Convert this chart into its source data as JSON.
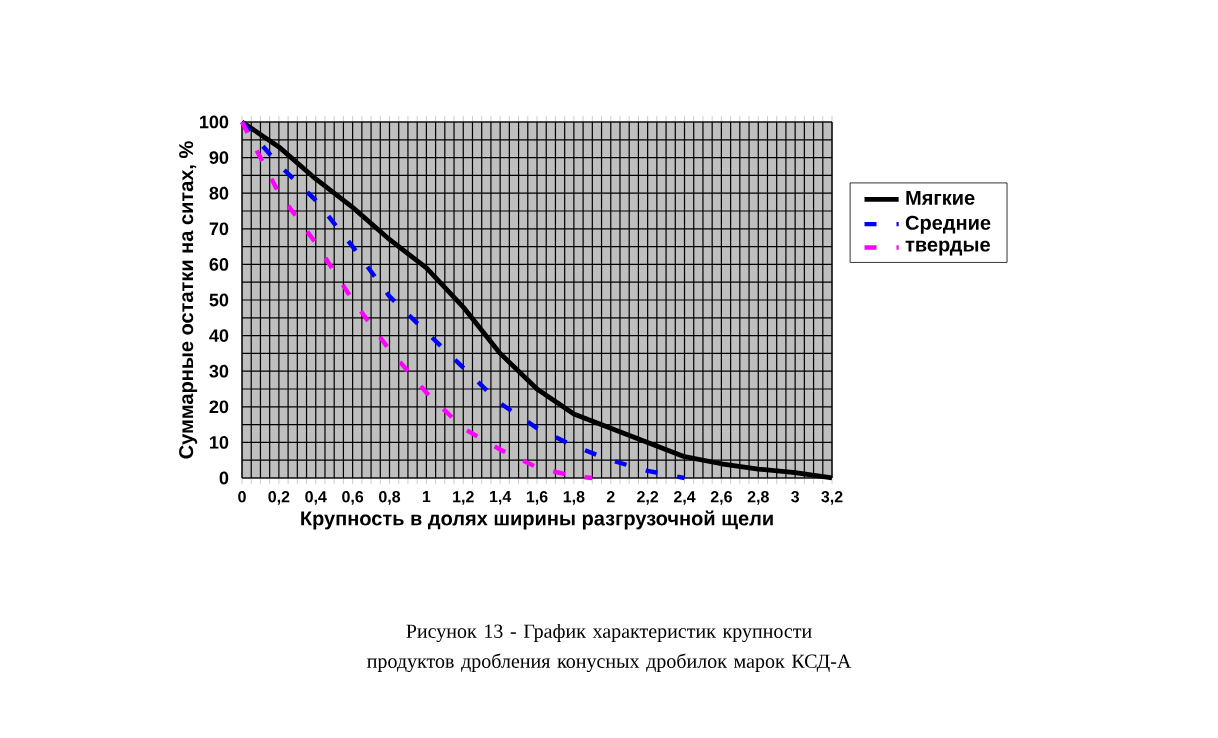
{
  "chart_data": {
    "type": "line",
    "xlabel": "Крупность в долях ширины разгрузочной щели",
    "ylabel": "Суммарные остатки на ситах, %",
    "annotations": [
      "Рисунок 13 - График характеристик крупности продуктов дробления конусных дробилок марок КСД-А"
    ],
    "series": [
      {
        "name": "Мягкие",
        "color": "#000000",
        "line_style": "solid",
        "x": [
          0,
          0.2,
          0.4,
          0.6,
          0.8,
          1.0,
          1.2,
          1.4,
          1.6,
          1.8,
          2.0,
          2.2,
          2.4,
          2.6,
          2.8,
          3.0,
          3.2
        ],
        "values": [
          100,
          93,
          84,
          76,
          67,
          59,
          48,
          35,
          25,
          18,
          14,
          10,
          6,
          4,
          2.5,
          1.5,
          0
        ]
      },
      {
        "name": "Средние",
        "color": "#0000ff",
        "line_style": "dashed",
        "x": [
          0,
          0.2,
          0.4,
          0.6,
          0.8,
          1.0,
          1.2,
          1.4,
          1.6,
          1.8,
          2.0,
          2.2,
          2.4
        ],
        "values": [
          100,
          88,
          78,
          65,
          51,
          41,
          31,
          21,
          14,
          9,
          5,
          2,
          0
        ]
      },
      {
        "name": "твердые",
        "color": "#ff00ff",
        "line_style": "dashed",
        "x": [
          0,
          0.2,
          0.4,
          0.6,
          0.8,
          1.0,
          1.2,
          1.4,
          1.6,
          1.8,
          1.9
        ],
        "values": [
          100,
          80,
          66,
          50,
          36,
          24,
          14,
          8,
          3,
          0.5,
          0
        ]
      }
    ],
    "xlim": [
      0,
      3.2
    ],
    "ylim": [
      0,
      100
    ],
    "xticks": [
      0,
      {
        "value": 0.2,
        "label": "0,2"
      },
      {
        "value": 0.4,
        "label": "0,4"
      },
      {
        "value": 0.6,
        "label": "0,6"
      },
      {
        "value": 0.8,
        "label": "0,8"
      },
      1,
      {
        "value": 1.2,
        "label": "1,2"
      },
      {
        "value": 1.4,
        "label": "1,4"
      },
      {
        "value": 1.6,
        "label": "1,6"
      },
      {
        "value": 1.8,
        "label": "1,8"
      },
      2,
      {
        "value": 2.2,
        "label": "2,2"
      },
      {
        "value": 2.4,
        "label": "2,4"
      },
      {
        "value": 2.6,
        "label": "2,6"
      },
      {
        "value": 2.8,
        "label": "2,8"
      },
      3,
      {
        "value": 3.2,
        "label": "3,2"
      }
    ],
    "yticks": [
      0,
      10,
      20,
      30,
      40,
      50,
      60,
      70,
      80,
      90,
      100
    ],
    "grid": true,
    "legend": "top right",
    "marker": "none"
  }
}
